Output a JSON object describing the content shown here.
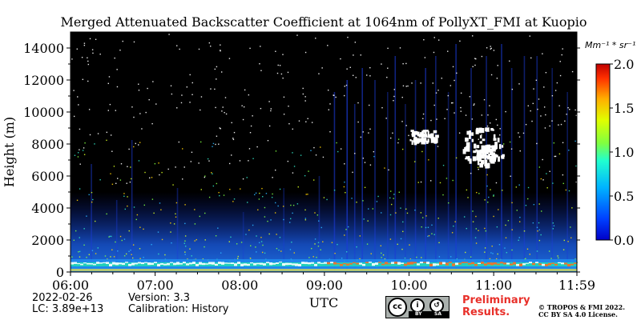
{
  "chart_data": {
    "type": "heatmap",
    "title": "Merged Attenuated Backscatter Coefficient at 1064nm of PollyXT_FMI at Kuopio",
    "xlabel": "UTC",
    "ylabel": "Height (m)",
    "x_ticks": [
      "06:00",
      "07:00",
      "08:00",
      "09:00",
      "10:00",
      "11:00",
      "11:59"
    ],
    "x_range": [
      "06:00",
      "11:59"
    ],
    "y_ticks": [
      0,
      2000,
      4000,
      6000,
      8000,
      10000,
      12000,
      14000
    ],
    "ylim": [
      0,
      15000
    ],
    "colorbar": {
      "unit": "Mm⁻¹ * sr⁻¹",
      "ticks": [
        "0.0",
        "0.5",
        "1.0",
        "1.5",
        "2.0"
      ],
      "range": [
        0.0,
        2.0
      ],
      "colormap": "jet"
    },
    "grid": false
  },
  "info": {
    "date": "2022-02-26",
    "lc": "LC: 3.89e+13",
    "version": "Version: 3.3",
    "calibration": "Calibration: History"
  },
  "notice": {
    "preliminary_line1": "Preliminary",
    "preliminary_line2": "Results.",
    "preliminary_color": "#e8302a",
    "copyright_line1": "© TROPOS & FMI 2022.",
    "copyright_line2": "CC BY SA 4.0 License.",
    "license_badge": {
      "icon": "cc-by-sa-icon",
      "label_by": "BY",
      "label_sa": "SA"
    }
  },
  "colors": {
    "background": "#000000",
    "low": "#0a1a8c",
    "mid": "#2bb5ff",
    "high": "#ff2a00",
    "cloud": "#ffffff"
  }
}
